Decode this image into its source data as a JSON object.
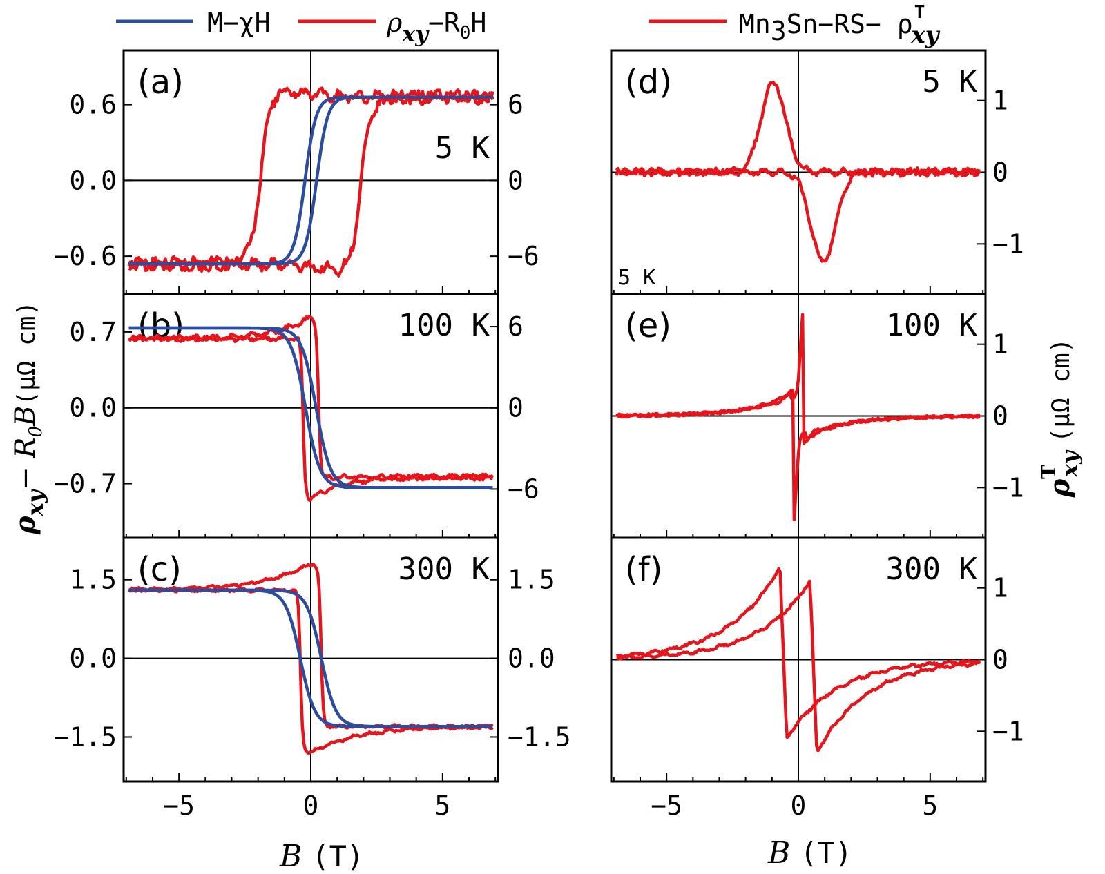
{
  "colors": {
    "red": "#e8141b",
    "blue": "#2b4c9f",
    "axis": "#000000"
  },
  "legend": {
    "blue_label": "M−χH",
    "red_sym": "ρ",
    "red_sub": "xy",
    "red_tail": "−R",
    "red_tail_sub": "0",
    "red_tail_end": "H",
    "right_prefix": "Mn",
    "right_prefix_sub": "3",
    "right_middle": "Sn−RS− ρ",
    "right_sup": "T",
    "right_sub": "xy"
  },
  "axes_labels": {
    "x_italic": "B",
    "x_unit": "(T)",
    "left_y": {
      "rho": "ρ",
      "sub": "xy",
      "minus": "− ",
      "R": "R",
      "R_sub": "0",
      "B": "B",
      "unit": "(μΩ cm)"
    },
    "right_y": {
      "rho": "ρ",
      "sup": "T",
      "sub": "xy",
      "unit": "(μΩ cm)"
    }
  },
  "chart_data": [
    {
      "panel": "(a)",
      "type": "line",
      "temperature": "5 K",
      "xlim": [
        -7.1,
        7.1
      ],
      "ylim": [
        -0.9,
        1.03
      ],
      "y2lim": [
        -9,
        10.3
      ],
      "xticks": [
        -5,
        0,
        5
      ],
      "yticks": [
        {
          "v": -0.6,
          "l": "−0.6"
        },
        {
          "v": 0.0,
          "l": "0.0"
        },
        {
          "v": 0.6,
          "l": "0.6"
        }
      ],
      "y2ticks": [
        {
          "v": -6,
          "l": "−6"
        },
        {
          "v": 0,
          "l": "0"
        },
        {
          "v": 6,
          "l": "6"
        }
      ],
      "series": [
        {
          "color": "red",
          "kind": "loop",
          "shape": "sat",
          "sat": 0.66,
          "hc": 1.9,
          "w": 0.42,
          "peak": 0.14,
          "pw": 1.1,
          "noise": 0.03
        },
        {
          "color": "blue",
          "axis": "y2",
          "kind": "loop",
          "shape": "sat",
          "sat": 6.6,
          "hc": 0.22,
          "w": 0.42,
          "peak": 0,
          "pw": 1,
          "noise": 0
        }
      ]
    },
    {
      "panel": "(b)",
      "type": "line",
      "temperature": "100 K",
      "xlim": [
        -7.1,
        7.1
      ],
      "ylim": [
        -1.2,
        1.05
      ],
      "y2lim": [
        -9.6,
        8.4
      ],
      "xticks": [
        -5,
        0,
        5
      ],
      "yticks": [
        {
          "v": -0.7,
          "l": "−0.7"
        },
        {
          "v": 0.0,
          "l": "0.0"
        },
        {
          "v": 0.7,
          "l": "0.7"
        }
      ],
      "y2ticks": [
        {
          "v": -6,
          "l": "−6"
        },
        {
          "v": 0,
          "l": "0"
        },
        {
          "v": 6,
          "l": "6"
        }
      ],
      "series": [
        {
          "color": "red",
          "kind": "loop",
          "shape": "sat",
          "sat": -0.64,
          "hc": 0.3,
          "w": 0.08,
          "peak": 0.28,
          "pw": 1.1,
          "noise": 0.015
        },
        {
          "color": "blue",
          "axis": "y2",
          "kind": "loop",
          "shape": "sat",
          "sat": -5.9,
          "hc": 0.2,
          "w": 0.55,
          "peak": 0,
          "pw": 1,
          "noise": 0
        }
      ]
    },
    {
      "panel": "(c)",
      "type": "line",
      "temperature": "300 K",
      "xlim": [
        -7.1,
        7.1
      ],
      "ylim": [
        -2.35,
        2.3
      ],
      "y2lim": [
        -2.35,
        2.3
      ],
      "xticks": [
        -5,
        0,
        5
      ],
      "yticks": [
        {
          "v": -1.5,
          "l": "−1.5"
        },
        {
          "v": 0.0,
          "l": "0.0"
        },
        {
          "v": 1.5,
          "l": "1.5"
        }
      ],
      "y2ticks": [
        {
          "v": -1.5,
          "l": "−1.5"
        },
        {
          "v": 0.0,
          "l": "0.0"
        },
        {
          "v": 1.5,
          "l": "1.5"
        }
      ],
      "series": [
        {
          "color": "red",
          "kind": "loop",
          "shape": "sat",
          "sat": -1.3,
          "hc": 0.4,
          "w": 0.08,
          "peak": 0.65,
          "pw": 1.7,
          "noise": 0.02
        },
        {
          "color": "blue",
          "axis": "y2",
          "kind": "loop",
          "shape": "sat",
          "sat": -1.3,
          "hc": 0.4,
          "w": 0.55,
          "peak": 0,
          "pw": 1,
          "noise": 0
        }
      ]
    },
    {
      "panel": "(d)",
      "type": "line",
      "temperature": "5 K",
      "inner_note": "5 K",
      "xlim": [
        -7.1,
        7.1
      ],
      "ylim": [
        -1.7,
        1.7
      ],
      "xticks": [
        -5,
        0,
        5
      ],
      "yticks": [
        {
          "v": -1,
          "l": "−1"
        },
        {
          "v": 0,
          "l": "0"
        },
        {
          "v": 1,
          "l": "1"
        }
      ],
      "series": [
        {
          "color": "red",
          "kind": "topo",
          "shape": "gauss",
          "amp": 1.25,
          "center": 0.95,
          "width": 0.65,
          "noise": 0.03
        }
      ]
    },
    {
      "panel": "(e)",
      "type": "line",
      "temperature": "100 K",
      "xlim": [
        -7.1,
        7.1
      ],
      "ylim": [
        -1.7,
        1.7
      ],
      "xticks": [
        -5,
        0,
        5
      ],
      "yticks": [
        {
          "v": -1,
          "l": "−1"
        },
        {
          "v": 0,
          "l": "0"
        },
        {
          "v": 1,
          "l": "1"
        }
      ],
      "series": [
        {
          "color": "red",
          "kind": "topo",
          "shape": "spike",
          "amp": 1.25,
          "jump": 0.2,
          "tail": 0.28,
          "decay": 1.6,
          "noise": 0.012
        }
      ]
    },
    {
      "panel": "(f)",
      "type": "line",
      "temperature": "300 K",
      "xlim": [
        -7.1,
        7.1
      ],
      "ylim": [
        -1.7,
        1.7
      ],
      "xticks": [
        -5,
        0,
        5
      ],
      "yticks": [
        {
          "v": -1,
          "l": "−1"
        },
        {
          "v": 0,
          "l": "0"
        },
        {
          "v": 1,
          "l": "1"
        }
      ],
      "series": [
        {
          "color": "red",
          "kind": "topo",
          "shape": "saw",
          "amp": 1.3,
          "jump": 0.7,
          "decay": 1.9,
          "noise": 0.015
        }
      ]
    }
  ]
}
